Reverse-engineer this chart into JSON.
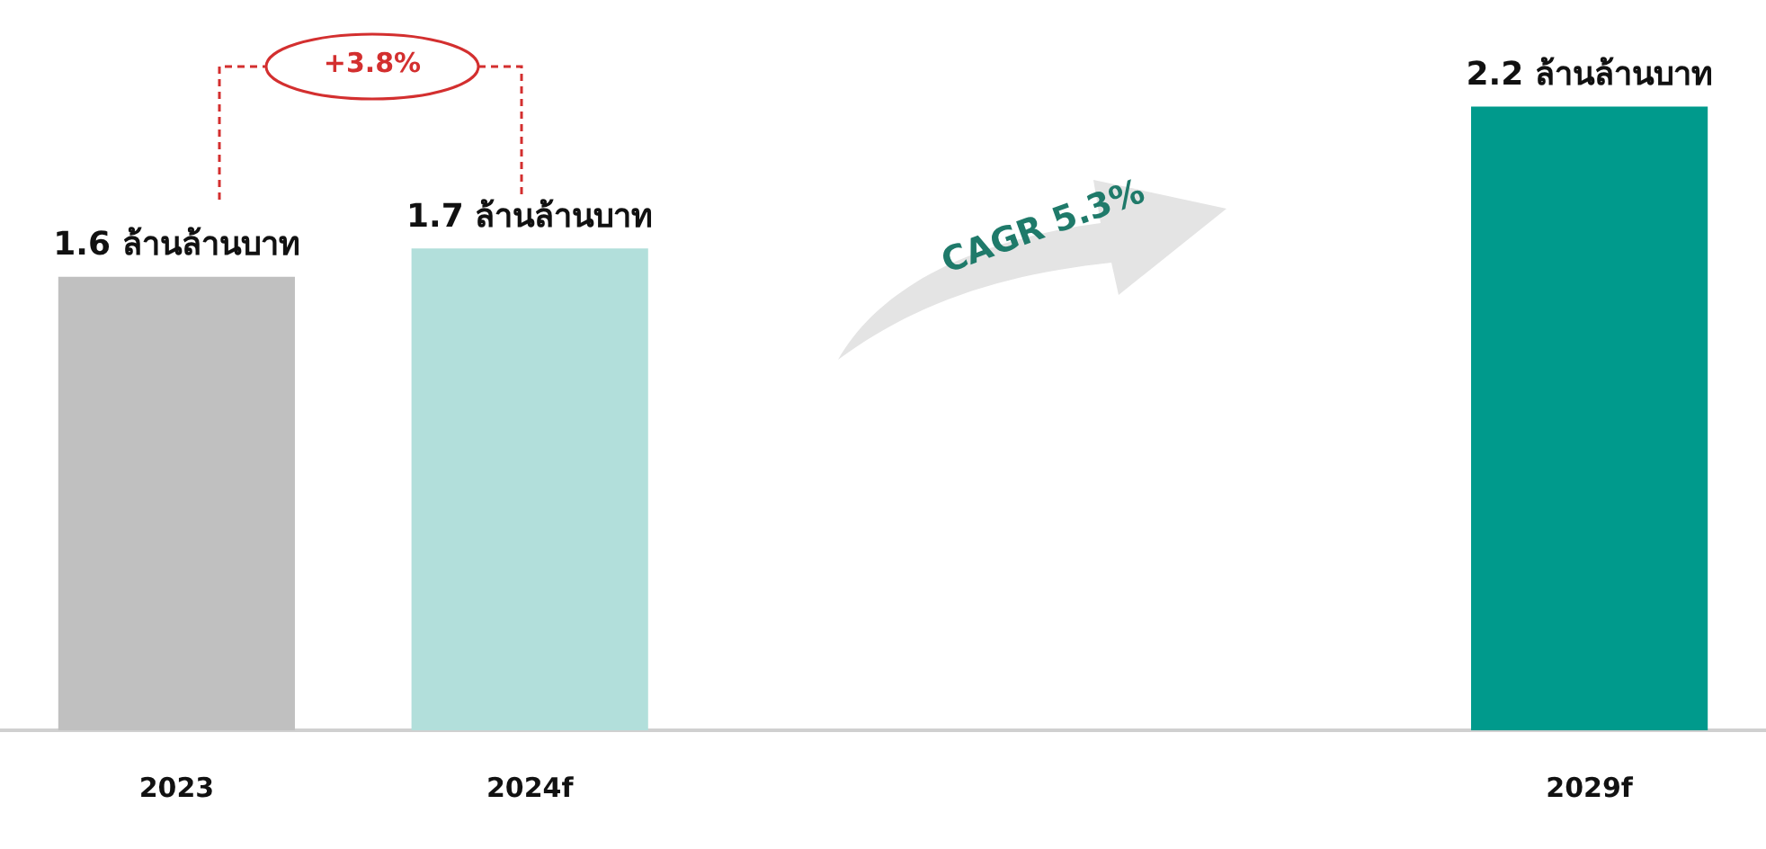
{
  "chart_data": {
    "type": "bar",
    "categories": [
      "2023",
      "2024f",
      null,
      null,
      "2029f"
    ],
    "values": [
      1.6,
      1.7,
      null,
      null,
      2.2
    ],
    "colors": [
      "#c0c0c0",
      "#b2dfdb",
      null,
      null,
      "#009a8c"
    ],
    "value_labels": [
      "1.6 ล้านล้านบาท",
      "1.7 ล้านล้านบาท",
      null,
      null,
      "2.2 ล้านล้านบาท"
    ],
    "annotations": [
      "+3.8%",
      "CAGR 5.3%"
    ],
    "tick_labels": "x",
    "grid": false,
    "legend": false
  }
}
